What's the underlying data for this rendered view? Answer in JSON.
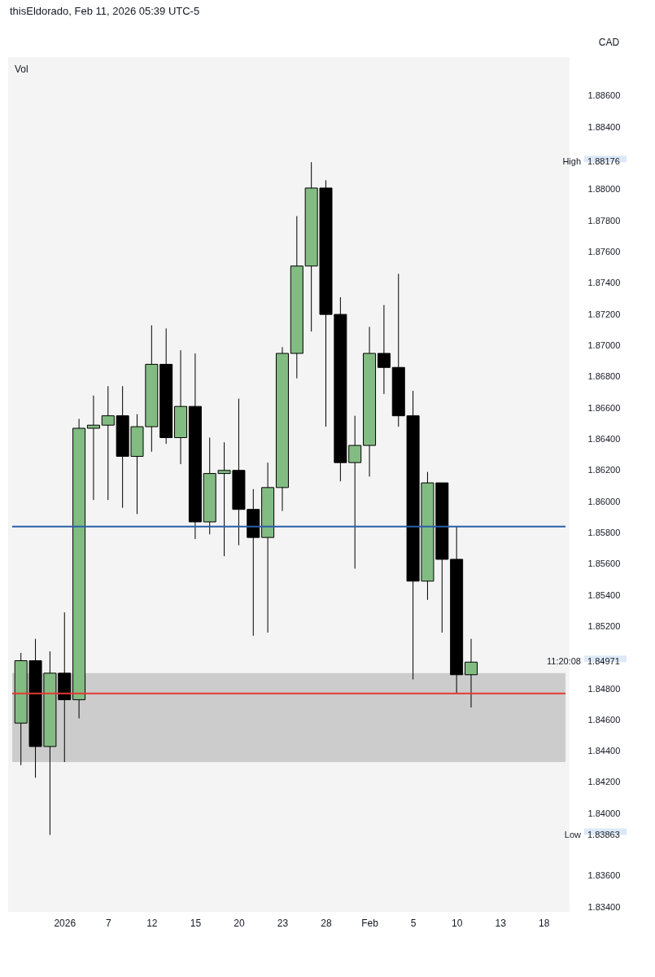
{
  "chart_data": {
    "type": "candlestick",
    "title": "thisEldorado, Feb 11, 2026 05:39 UTC-5",
    "ylabel": "CAD",
    "categories": [
      null,
      null,
      null,
      "2026",
      null,
      null,
      "7",
      null,
      null,
      "12",
      null,
      null,
      "15",
      null,
      null,
      "20",
      null,
      null,
      "23",
      null,
      null,
      "28",
      null,
      null,
      "Feb",
      null,
      null,
      "5",
      null,
      null,
      "10",
      null,
      null,
      "13",
      null,
      null,
      "18",
      null
    ],
    "ohlc": [
      [
        1.8458,
        1.8503,
        1.8431,
        1.8498
      ],
      [
        1.8498,
        1.8512,
        1.8423,
        1.8443
      ],
      [
        1.8443,
        1.8504,
        1.83863,
        1.849
      ],
      [
        1.849,
        1.8529,
        1.8433,
        1.8473
      ],
      [
        1.8473,
        1.8653,
        1.8461,
        1.8647
      ],
      [
        1.8647,
        1.8668,
        1.8601,
        1.8649
      ],
      [
        1.8649,
        1.8674,
        1.8601,
        1.8655
      ],
      [
        1.8655,
        1.8674,
        1.8596,
        1.8629
      ],
      [
        1.8629,
        1.8656,
        1.8592,
        1.8648
      ],
      [
        1.8648,
        1.8713,
        1.8632,
        1.8688
      ],
      [
        1.8688,
        1.8711,
        1.8637,
        1.8641
      ],
      [
        1.8641,
        1.8697,
        1.8624,
        1.8661
      ],
      [
        1.8661,
        1.8695,
        1.8576,
        1.8587
      ],
      [
        1.8587,
        1.8641,
        1.8579,
        1.8618
      ],
      [
        1.8618,
        1.8638,
        1.8565,
        1.862
      ],
      [
        1.862,
        1.8666,
        1.8572,
        1.8595
      ],
      [
        1.8595,
        1.8608,
        1.8514,
        1.8577
      ],
      [
        1.8577,
        1.8625,
        1.8516,
        1.8609
      ],
      [
        1.8609,
        1.8699,
        1.8594,
        1.8695
      ],
      [
        1.8695,
        1.8783,
        1.8679,
        1.8751
      ],
      [
        1.8751,
        1.88176,
        1.8709,
        1.8801
      ],
      [
        1.8801,
        1.8806,
        1.8648,
        1.872
      ],
      [
        1.872,
        1.8731,
        1.8613,
        1.8625
      ],
      [
        1.8625,
        1.8655,
        1.8557,
        1.8636
      ],
      [
        1.8636,
        1.8712,
        1.8616,
        1.8695
      ],
      [
        1.8695,
        1.8726,
        1.8669,
        1.8686
      ],
      [
        1.8686,
        1.8746,
        1.8648,
        1.8655
      ],
      [
        1.8655,
        1.8671,
        1.8486,
        1.8549
      ],
      [
        1.8549,
        1.8619,
        1.8537,
        1.8612
      ],
      [
        1.8612,
        1.8612,
        1.8516,
        1.8563
      ],
      [
        1.8563,
        1.8584,
        1.8477,
        1.8489
      ],
      [
        1.8489,
        1.8512,
        1.8468,
        1.84971
      ],
      null,
      null,
      null,
      null,
      null,
      null
    ],
    "colors": [
      "#82bc82",
      "#000000",
      "#82bc82",
      "#000000",
      "#82bc82",
      "#82bc82",
      "#82bc82",
      "#000000",
      "#82bc82",
      "#82bc82",
      "#000000",
      "#82bc82",
      "#000000",
      "#82bc82",
      "#82bc82",
      "#000000",
      "#000000",
      "#82bc82",
      "#82bc82",
      "#82bc82",
      "#82bc82",
      "#000000",
      "#000000",
      "#82bc82",
      "#82bc82",
      "#000000",
      "#000000",
      "#000000",
      "#82bc82",
      "#000000",
      "#000000",
      "#82bc82",
      null,
      null,
      null,
      null,
      null,
      null
    ],
    "ylim": [
      1.8337,
      1.8885
    ],
    "yticks": [
      {
        "value": 1.886,
        "label": "1.88600"
      },
      {
        "value": 1.884,
        "label": "1.88400"
      },
      {
        "value": 1.88,
        "label": "1.88000"
      },
      {
        "value": 1.878,
        "label": "1.87800"
      },
      {
        "value": 1.876,
        "label": "1.87600"
      },
      {
        "value": 1.874,
        "label": "1.87400"
      },
      {
        "value": 1.872,
        "label": "1.87200"
      },
      {
        "value": 1.87,
        "label": "1.87000"
      },
      {
        "value": 1.868,
        "label": "1.86800"
      },
      {
        "value": 1.866,
        "label": "1.86600"
      },
      {
        "value": 1.864,
        "label": "1.86400"
      },
      {
        "value": 1.862,
        "label": "1.86200"
      },
      {
        "value": 1.86,
        "label": "1.86000"
      },
      {
        "value": 1.858,
        "label": "1.85800"
      },
      {
        "value": 1.856,
        "label": "1.85600"
      },
      {
        "value": 1.854,
        "label": "1.85400"
      },
      {
        "value": 1.852,
        "label": "1.85200"
      },
      {
        "value": 1.848,
        "label": "1.84800"
      },
      {
        "value": 1.846,
        "label": "1.84600"
      },
      {
        "value": 1.844,
        "label": "1.84400"
      },
      {
        "value": 1.842,
        "label": "1.84200"
      },
      {
        "value": 1.84,
        "label": "1.84000"
      },
      {
        "value": 1.836,
        "label": "1.83600"
      },
      {
        "value": 1.834,
        "label": "1.83400"
      }
    ],
    "bands": [
      {
        "axis": "y",
        "from": 1.8433,
        "to": 1.849,
        "color": "#cccccc"
      }
    ],
    "ref_lines": [
      {
        "axis": "y",
        "value": 1.8584,
        "color": "#2a5ea8"
      },
      {
        "axis": "y",
        "value": 1.8477,
        "color": "#e53935"
      }
    ],
    "annotations": [
      "Vol",
      "High",
      "1.88176",
      "11:20:08",
      "1.84971",
      "Low",
      "1.83863"
    ],
    "grid": false
  }
}
